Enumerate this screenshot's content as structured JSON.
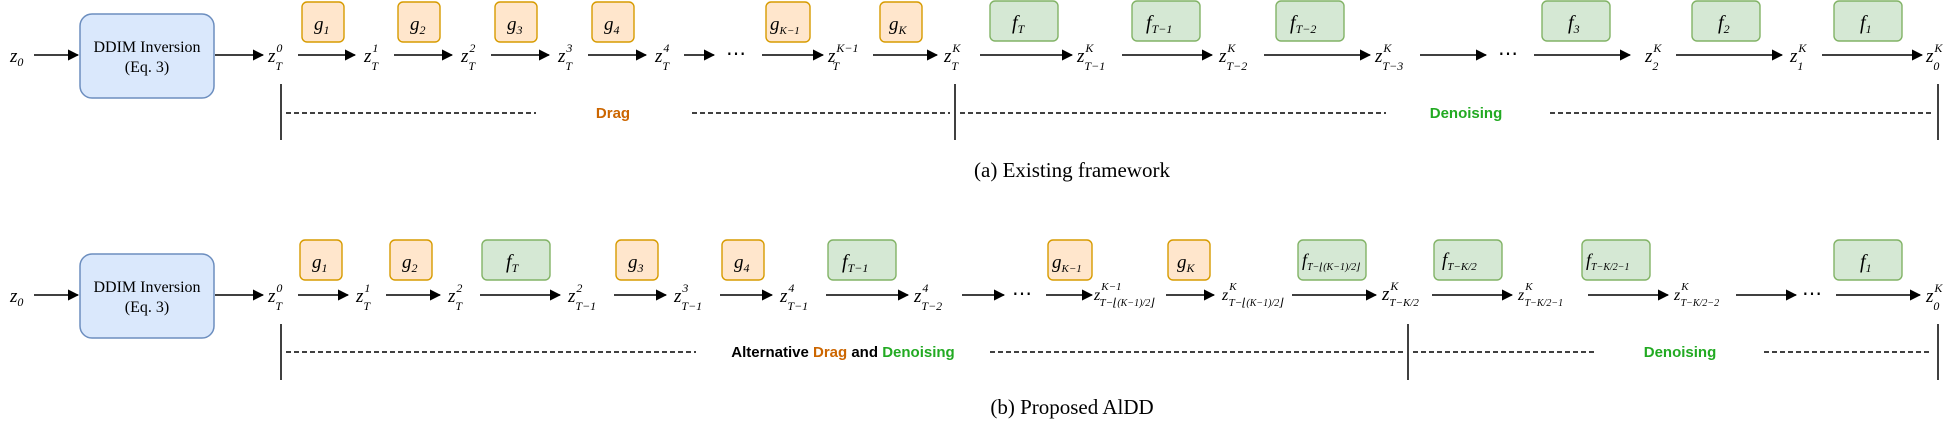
{
  "colors": {
    "drag_fill": "#ffe6cc",
    "drag_stroke": "#d79b00",
    "drag_text": "#cc6600",
    "denoise_fill": "#d5e8d4",
    "denoise_stroke": "#82b366",
    "denoise_text": "#22aa22",
    "inversion_fill": "#dae8fc",
    "inversion_stroke": "#6c8ebf"
  },
  "panel_a": {
    "start": "z0",
    "inversion": {
      "line1": "DDIM Inversion",
      "line2": "(Eq. 3)"
    },
    "drag_label": "Drag",
    "denoise_label": "Denoising",
    "caption": "(a) Existing framework"
  },
  "panel_b": {
    "start": "z0",
    "inversion": {
      "line1": "DDIM Inversion",
      "line2": "(Eq. 3)"
    },
    "alt_label": {
      "part1": "Alternative",
      "part2": "Drag",
      "part3": "and",
      "part4": "Denoising"
    },
    "denoise_label": "Denoising",
    "caption": "(b) Proposed AlDD"
  }
}
